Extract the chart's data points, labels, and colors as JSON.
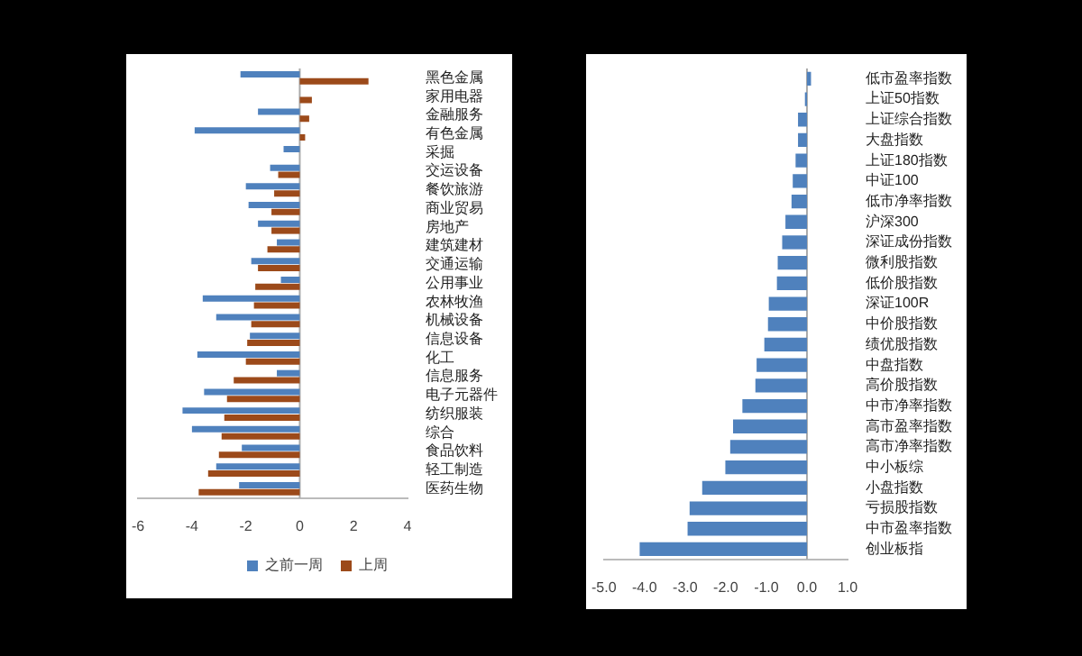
{
  "chart_data": [
    {
      "type": "bar",
      "orientation": "horizontal",
      "legend": "bottom",
      "ref_lines": [
        {
          "axis": "x",
          "value": 0,
          "color": "#aaaaaa"
        }
      ],
      "categories": [
        "黑色金属",
        "家用电器",
        "金融服务",
        "有色金属",
        "采掘",
        "交运设备",
        "餐饮旅游",
        "商业贸易",
        "房地产",
        "建筑建材",
        "交通运输",
        "公用事业",
        "农林牧渔",
        "机械设备",
        "信息设备",
        "化工",
        "信息服务",
        "电子元器件",
        "纺织服装",
        "综合",
        "食品饮料",
        "轻工制造",
        "医药生物"
      ],
      "series": [
        {
          "name": "之前一周",
          "color": "#4f81bd",
          "values": [
            -2.2,
            0,
            -1.55,
            -3.9,
            -0.6,
            -1.1,
            -2.0,
            -1.9,
            -1.55,
            -0.85,
            -1.8,
            -0.7,
            -3.6,
            -3.1,
            -1.85,
            -3.8,
            -0.85,
            -3.55,
            -4.35,
            -4.0,
            -2.15,
            -3.1,
            -2.25
          ]
        },
        {
          "name": "上周",
          "color": "#9c4a1a",
          "values": [
            2.55,
            0.45,
            0.35,
            0.2,
            0,
            -0.8,
            -0.95,
            -1.05,
            -1.05,
            -1.2,
            -1.55,
            -1.65,
            -1.7,
            -1.8,
            -1.95,
            -2.0,
            -2.45,
            -2.7,
            -2.8,
            -2.9,
            -3.0,
            -3.4,
            -3.75
          ]
        }
      ],
      "xlim": [
        -6,
        4
      ],
      "xticks": [
        -6,
        -4,
        -2,
        0,
        2,
        4
      ]
    },
    {
      "type": "bar",
      "orientation": "horizontal",
      "ref_lines": [
        {
          "axis": "x",
          "value": 0,
          "color": "#aaaaaa"
        }
      ],
      "categories": [
        "低市盈率指数",
        "上证50指数",
        "上证综合指数",
        "大盘指数",
        "上证180指数",
        "中证100",
        "低市净率指数",
        "沪深300",
        "深证成份指数",
        "微利股指数",
        "低价股指数",
        "深证100R",
        "中价股指数",
        "绩优股指数",
        "中盘指数",
        "高价股指数",
        "中市净率指数",
        "高市盈率指数",
        "高市净率指数",
        "中小板综",
        "小盘指数",
        "亏损股指数",
        "中市盈率指数",
        "创业板指"
      ],
      "series": [
        {
          "color": "#4f81bd",
          "values": [
            0.1,
            -0.05,
            -0.22,
            -0.22,
            -0.28,
            -0.35,
            -0.38,
            -0.53,
            -0.61,
            -0.72,
            -0.74,
            -0.94,
            -0.96,
            -1.05,
            -1.24,
            -1.27,
            -1.59,
            -1.82,
            -1.89,
            -2.01,
            -2.58,
            -2.89,
            -2.94,
            -4.12
          ]
        }
      ],
      "xlim": [
        -5,
        1
      ],
      "xticks": [
        {
          "value": -5,
          "label": "-5.0"
        },
        {
          "value": -4,
          "label": "-4.0"
        },
        {
          "value": -3,
          "label": "-3.0"
        },
        {
          "value": -2,
          "label": "-2.0"
        },
        {
          "value": -1,
          "label": "-1.0"
        },
        {
          "value": 0,
          "label": "0.0"
        },
        {
          "value": 1,
          "label": "1.0"
        }
      ]
    }
  ]
}
